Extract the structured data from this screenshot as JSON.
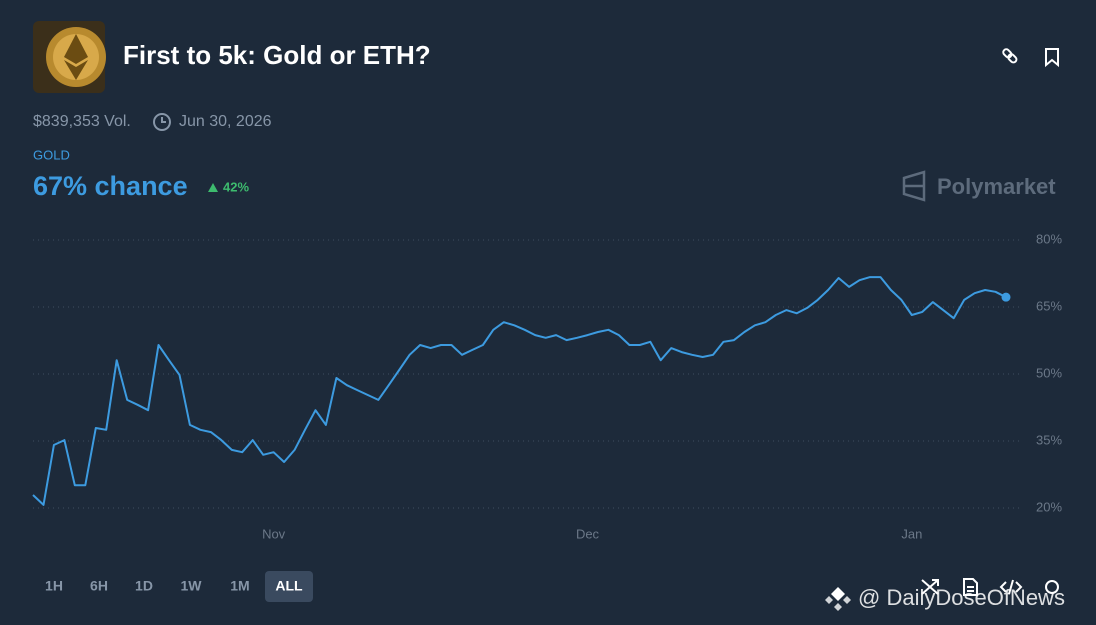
{
  "header": {
    "title": "First to 5k: Gold or ETH?",
    "volume": "$839,353 Vol.",
    "end_date": "Jun 30, 2026"
  },
  "outcome": {
    "name": "GOLD",
    "chance": "67% chance",
    "change": "42%"
  },
  "brand": "Polymarket",
  "time_ranges": [
    "1H",
    "6H",
    "1D",
    "1W",
    "1M",
    "ALL"
  ],
  "active_range_index": 5,
  "watermark": "@ DailyDoseOfNews",
  "chart_data": {
    "type": "line",
    "color": "#3d9be0",
    "end_marker": true,
    "grid": true,
    "x": [
      0,
      1,
      2,
      3,
      4,
      5,
      6,
      7,
      8,
      9,
      10,
      11,
      12,
      13,
      14,
      15,
      16,
      17,
      18,
      19,
      20,
      21,
      22,
      23,
      24,
      25,
      26,
      27,
      28,
      29,
      30,
      31,
      32,
      33,
      34,
      35,
      36,
      37,
      38,
      39,
      40,
      41,
      42,
      43,
      44,
      45,
      46,
      47,
      48,
      49,
      50,
      51,
      52,
      53,
      54,
      55,
      56,
      57,
      58,
      59,
      60,
      61,
      62,
      63,
      64,
      65,
      66,
      67,
      68,
      69,
      70,
      71,
      72,
      73,
      74,
      75,
      76,
      77,
      78,
      79,
      80,
      81,
      82,
      83,
      84,
      85,
      86,
      87,
      88,
      89,
      90,
      91,
      92,
      93
    ],
    "values": [
      22.9,
      20.7,
      34.1,
      35.2,
      25.1,
      25.1,
      37.9,
      37.5,
      53.1,
      44.2,
      43.1,
      41.9,
      56.5,
      53.1,
      49.8,
      38.6,
      37.5,
      37.0,
      35.2,
      33.0,
      32.5,
      35.2,
      31.9,
      32.5,
      30.3,
      33.0,
      37.5,
      41.9,
      38.6,
      49.1,
      47.5,
      46.4,
      45.3,
      44.2,
      47.5,
      50.9,
      54.3,
      56.5,
      55.8,
      56.5,
      56.5,
      54.3,
      55.4,
      56.5,
      59.9,
      61.6,
      60.9,
      59.9,
      58.7,
      58.1,
      58.7,
      57.6,
      58.1,
      58.7,
      59.4,
      59.9,
      58.7,
      56.5,
      56.5,
      57.2,
      53.1,
      55.8,
      54.9,
      54.3,
      53.8,
      54.3,
      57.2,
      57.6,
      59.4,
      60.9,
      61.6,
      63.2,
      64.3,
      63.6,
      64.8,
      66.6,
      68.8,
      71.5,
      69.5,
      71.0,
      71.7,
      71.7,
      68.8,
      66.6,
      63.2,
      63.9,
      66.1,
      64.3,
      62.5,
      66.6,
      68.1,
      68.8,
      68.4,
      67.2
    ],
    "xlim": [
      0,
      93
    ],
    "xticks": [
      {
        "value": 23,
        "label": "Nov"
      },
      {
        "value": 53,
        "label": "Dec"
      },
      {
        "value": 84,
        "label": "Jan"
      }
    ],
    "ylim": [
      20,
      80
    ],
    "yticks": [
      {
        "value": 20,
        "label": "20%"
      },
      {
        "value": 35,
        "label": "35%"
      },
      {
        "value": 50,
        "label": "50%"
      },
      {
        "value": 65,
        "label": "65%"
      },
      {
        "value": 80,
        "label": "80%"
      }
    ]
  }
}
